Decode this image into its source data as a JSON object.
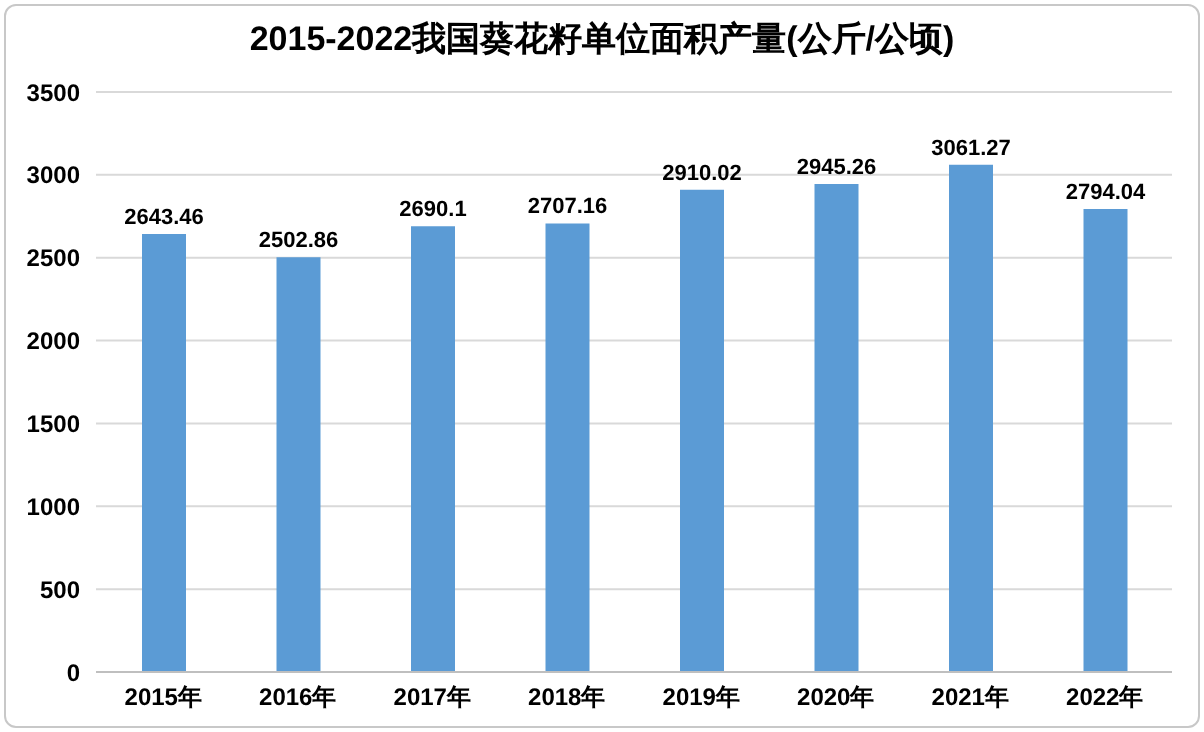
{
  "chart_data": {
    "type": "bar",
    "title": "2015-2022我国葵花籽单位面积产量(公斤/公顷)",
    "categories": [
      "2015年",
      "2016年",
      "2017年",
      "2018年",
      "2019年",
      "2020年",
      "2021年",
      "2022年"
    ],
    "values": [
      2643.46,
      2502.86,
      2690.1,
      2707.16,
      2910.02,
      2945.26,
      3061.27,
      2794.04
    ],
    "color": "#5b9bd5",
    "ylim": [
      0,
      3500
    ],
    "yticks": [
      0,
      500,
      1000,
      1500,
      2000,
      2500,
      3000,
      3500
    ],
    "grid": "y",
    "data_labels": true
  }
}
